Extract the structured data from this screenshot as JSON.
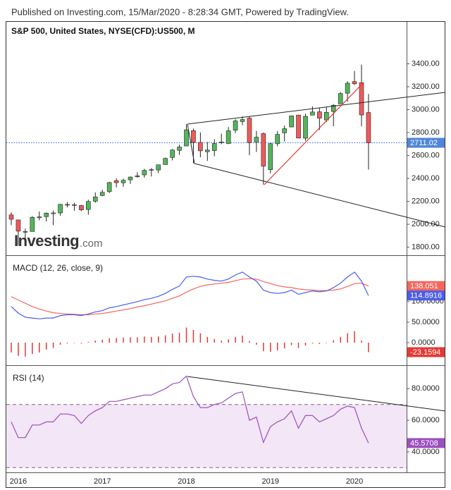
{
  "header": "Published on Investing.com, 15/Mar/2020 - 8:28:34 GMT, Powered by TradingView.",
  "chart_data": [
    {
      "type": "candlestick",
      "title": "S&P 500, United States, NYSE(CFD):US500, M",
      "watermark": "Investing",
      "watermark_suffix": ".com",
      "categories": [
        null,
        "2016",
        null,
        null,
        null,
        null,
        null,
        null,
        null,
        null,
        null,
        null,
        null,
        "2017",
        null,
        null,
        null,
        null,
        null,
        null,
        null,
        null,
        null,
        null,
        null,
        "2018",
        null,
        null,
        null,
        null,
        null,
        null,
        null,
        null,
        null,
        null,
        null,
        "2019",
        null,
        null,
        null,
        null,
        null,
        null,
        null,
        null,
        null,
        null,
        null,
        "2020",
        null,
        null
      ],
      "open": [
        2082,
        2038,
        1937,
        1937,
        2057,
        2067,
        2094,
        2099,
        2173,
        2171,
        2164,
        2129,
        2201,
        2251,
        2286,
        2381,
        2362,
        2388,
        2415,
        2431,
        2477,
        2474,
        2521,
        2583,
        2645,
        2683,
        2817,
        2715,
        2633,
        2643,
        2718,
        2705,
        2821,
        2896,
        2926,
        2718,
        2791,
        2476,
        2703,
        2798,
        2849,
        2953,
        2751,
        2952,
        2981,
        2910,
        2984,
        3050,
        3144,
        3245,
        3236,
        2975
      ],
      "high": [
        2104,
        2038,
        1962,
        2072,
        2111,
        2103,
        2120,
        2178,
        2194,
        2188,
        2169,
        2214,
        2278,
        2301,
        2371,
        2401,
        2398,
        2418,
        2454,
        2484,
        2491,
        2519,
        2582,
        2657,
        2695,
        2873,
        2835,
        2801,
        2718,
        2742,
        2791,
        2848,
        2916,
        2941,
        2940,
        2815,
        2800,
        2708,
        2813,
        2861,
        2949,
        2954,
        2965,
        3028,
        3014,
        3022,
        3050,
        3154,
        3248,
        3338,
        3393,
        3137
      ],
      "low": [
        1993,
        1812,
        1810,
        1937,
        2034,
        2025,
        1992,
        2075,
        2147,
        2119,
        2114,
        2084,
        2188,
        2245,
        2271,
        2322,
        2328,
        2352,
        2405,
        2407,
        2417,
        2446,
        2520,
        2557,
        2605,
        2683,
        2533,
        2585,
        2553,
        2594,
        2699,
        2699,
        2796,
        2864,
        2603,
        2631,
        2346,
        2444,
        2681,
        2722,
        2848,
        2751,
        2729,
        2952,
        2822,
        2892,
        2855,
        3050,
        3070,
        3215,
        2855,
        2478
      ],
      "close": [
        2044,
        1940,
        1932,
        2060,
        2065,
        2097,
        2099,
        2174,
        2171,
        2168,
        2126,
        2199,
        2239,
        2279,
        2364,
        2363,
        2384,
        2412,
        2423,
        2470,
        2472,
        2519,
        2575,
        2648,
        2674,
        2824,
        2714,
        2641,
        2648,
        2705,
        2718,
        2816,
        2902,
        2914,
        2712,
        2760,
        2507,
        2704,
        2784,
        2834,
        2946,
        2752,
        2942,
        2980,
        2926,
        2977,
        3038,
        3141,
        3231,
        3226,
        2954,
        2711.02
      ],
      "up_color": "#53b65a",
      "down_color": "#f05a5a",
      "last_line_color": "#2962ff",
      "last_box_color": "#4f86d8",
      "ylim": [
        1730,
        3760
      ],
      "yticks": [
        {
          "value": 1800,
          "label": "1800.00"
        },
        {
          "value": 2000,
          "label": "2000.00"
        },
        {
          "value": 2200,
          "label": "2200.00"
        },
        {
          "value": 2400,
          "label": "2400.00"
        },
        {
          "value": 2600,
          "label": "2600.00"
        },
        {
          "value": 2800,
          "label": "2800.00"
        },
        {
          "value": 3000,
          "label": "3000.00"
        },
        {
          "value": 3200,
          "label": "3200.00"
        },
        {
          "value": 3400,
          "label": "3400.00"
        }
      ]
    },
    {
      "type": "line",
      "title": "MACD (12, 26, close, 9)",
      "series": [
        {
          "color": "#e53935",
          "style": "histogram",
          "values": [
            -24,
            -32,
            -34,
            -28,
            -24,
            -17,
            -13,
            -5,
            -2,
            -1,
            -2,
            2,
            5,
            7,
            11,
            11,
            12,
            13,
            13,
            15,
            14,
            15,
            18,
            22,
            24,
            37,
            31,
            23,
            14,
            9,
            5,
            8,
            14,
            17,
            4,
            -5,
            -21,
            -22,
            -19,
            -14,
            -6,
            -13,
            -7,
            -2,
            -3,
            -1,
            6,
            14,
            23,
            28,
            5,
            -23.1594
          ]
        },
        {
          "color": "#f4665c",
          "values": [
            112,
            104,
            96,
            88,
            82,
            77,
            73,
            71,
            70,
            69,
            68,
            68,
            70,
            71,
            74,
            77,
            80,
            83,
            87,
            90,
            94,
            98,
            102,
            108,
            114,
            123,
            131,
            137,
            141,
            143,
            145,
            147,
            151,
            155,
            156,
            155,
            149,
            144,
            139,
            136,
            134,
            131,
            129,
            128,
            127,
            127,
            128,
            131,
            137,
            144,
            145,
            138.051
          ]
        },
        {
          "color": "#4b5de8",
          "values": [
            88,
            72,
            62,
            60,
            58,
            60,
            60,
            66,
            68,
            68,
            66,
            70,
            75,
            78,
            85,
            88,
            92,
            96,
            100,
            105,
            108,
            113,
            120,
            130,
            138,
            160,
            162,
            160,
            155,
            152,
            150,
            155,
            165,
            172,
            160,
            150,
            128,
            122,
            120,
            122,
            128,
            118,
            122,
            126,
            124,
            126,
            134,
            145,
            160,
            172,
            150,
            114.8916
          ]
        }
      ],
      "ylim": [
        -55,
        208
      ],
      "yticks": [
        {
          "value": 0,
          "label": "0.0000"
        },
        {
          "value": 50,
          "label": "50.0000"
        },
        {
          "value": 100,
          "label": "100.0000"
        }
      ]
    },
    {
      "type": "line",
      "title": "RSI (14)",
      "series": [
        {
          "color": "#9c4fc0",
          "values": [
            59,
            49,
            49,
            57,
            57,
            59,
            59,
            64,
            64,
            63,
            58,
            63,
            66,
            68,
            72,
            72,
            73,
            74,
            75,
            76,
            76,
            78,
            80,
            83,
            84,
            88,
            75,
            68,
            68,
            70,
            71,
            74,
            77,
            78,
            60,
            62,
            46,
            56,
            59,
            61,
            66,
            55,
            63,
            63,
            59,
            61,
            63,
            67,
            69,
            68,
            55,
            45.5708
          ]
        }
      ],
      "band": [
        30,
        70
      ],
      "band_color": "#f3e6f6",
      "ylim": [
        27,
        94
      ],
      "yticks": [
        {
          "value": 40,
          "label": "40.0000"
        },
        {
          "value": 60,
          "label": "60.0000"
        },
        {
          "value": 80,
          "label": "80.0000"
        }
      ]
    }
  ]
}
